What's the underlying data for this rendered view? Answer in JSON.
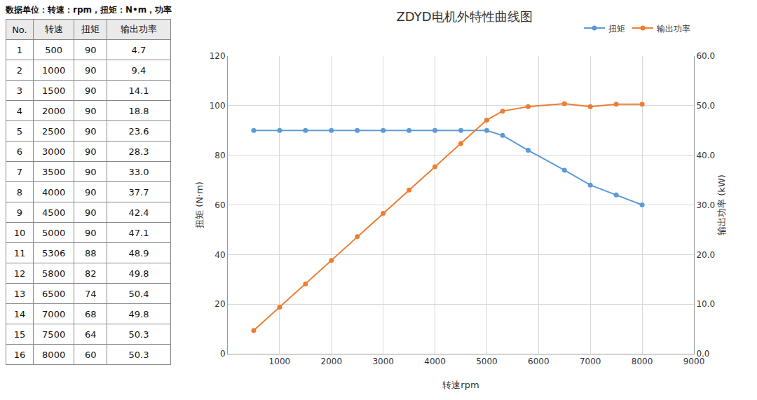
{
  "chart_data": {
    "type": "line",
    "title": "ZDYD电机外特性曲线图",
    "x_label": "转速rpm",
    "y_label": "扭矩 (N·m)",
    "y2_label": "输出功率 (kW)",
    "x": [
      500,
      1000,
      1500,
      2000,
      2500,
      3000,
      3500,
      4000,
      4500,
      5000,
      5306,
      5800,
      6500,
      7000,
      7500,
      8000
    ],
    "series": [
      {
        "name": "扭矩",
        "color": "#5b9bd5",
        "marker": "circle",
        "axis": "y",
        "values": [
          90,
          90,
          90,
          90,
          90,
          90,
          90,
          90,
          90,
          90,
          88,
          82,
          74,
          68,
          64,
          60
        ]
      },
      {
        "name": "输出功率",
        "color": "#ed7d31",
        "marker": "circle",
        "axis": "y2",
        "values": [
          4.7,
          9.4,
          14.1,
          18.8,
          23.6,
          28.3,
          33.0,
          37.7,
          42.4,
          47.1,
          48.9,
          49.8,
          50.4,
          49.8,
          50.3,
          50.3
        ]
      }
    ],
    "xlim": [
      0,
      9000
    ],
    "xticks": [
      1000,
      2000,
      3000,
      4000,
      5000,
      6000,
      7000,
      8000,
      9000
    ],
    "ylim": [
      0,
      120
    ],
    "yticks": [
      0,
      20,
      40,
      60,
      80,
      100,
      120
    ],
    "y2lim": [
      0,
      60
    ],
    "y2ticks": [
      {
        "value": 0,
        "label": "0.0"
      },
      {
        "value": 10,
        "label": "10.0"
      },
      {
        "value": 20,
        "label": "20.0"
      },
      {
        "value": 30,
        "label": "30.0"
      },
      {
        "value": 40,
        "label": "40.0"
      },
      {
        "value": 50,
        "label": "50.0"
      },
      {
        "value": 60,
        "label": "60.0"
      }
    ],
    "grid": true,
    "legend": "top-right"
  },
  "table": {
    "note": "数据单位：转速：rpm，扭矩：N•m，功率：kW",
    "columns": [
      "No.",
      "转速",
      "扭矩",
      "输出功率"
    ],
    "rows": [
      [
        1,
        500,
        90,
        "4.7"
      ],
      [
        2,
        1000,
        90,
        "9.4"
      ],
      [
        3,
        1500,
        90,
        "14.1"
      ],
      [
        4,
        2000,
        90,
        "18.8"
      ],
      [
        5,
        2500,
        90,
        "23.6"
      ],
      [
        6,
        3000,
        90,
        "28.3"
      ],
      [
        7,
        3500,
        90,
        "33.0"
      ],
      [
        8,
        4000,
        90,
        "37.7"
      ],
      [
        9,
        4500,
        90,
        "42.4"
      ],
      [
        10,
        5000,
        90,
        "47.1"
      ],
      [
        11,
        5306,
        88,
        "48.9"
      ],
      [
        12,
        5800,
        82,
        "49.8"
      ],
      [
        13,
        6500,
        74,
        "50.4"
      ],
      [
        14,
        7000,
        68,
        "49.8"
      ],
      [
        15,
        7500,
        64,
        "50.3"
      ],
      [
        16,
        8000,
        60,
        "50.3"
      ]
    ]
  }
}
